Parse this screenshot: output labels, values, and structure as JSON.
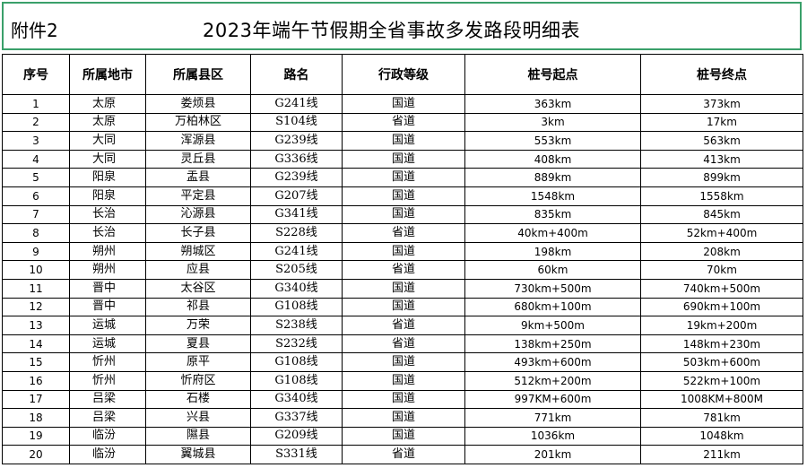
{
  "header": {
    "attachment": "附件2",
    "title": "2023年端午节假期全省事故多发路段明细表"
  },
  "table": {
    "columns": [
      "序号",
      "所属地市",
      "所属县区",
      "路名",
      "行政等级",
      "桩号起点",
      "桩号终点"
    ],
    "rows": [
      [
        "1",
        "太原",
        "娄烦县",
        "G241线",
        "国道",
        "363km",
        "373km"
      ],
      [
        "2",
        "太原",
        "万柏林区",
        "S104线",
        "省道",
        "3km",
        "17km"
      ],
      [
        "3",
        "大同",
        "浑源县",
        "G239线",
        "国道",
        "553km",
        "563km"
      ],
      [
        "4",
        "大同",
        "灵丘县",
        "G336线",
        "国道",
        "408km",
        "413km"
      ],
      [
        "5",
        "阳泉",
        "盂县",
        "G239线",
        "国道",
        "889km",
        "899km"
      ],
      [
        "6",
        "阳泉",
        "平定县",
        "G207线",
        "国道",
        "1548km",
        "1558km"
      ],
      [
        "7",
        "长治",
        "沁源县",
        "G341线",
        "国道",
        "835km",
        "845km"
      ],
      [
        "8",
        "长治",
        "长子县",
        "S228线",
        "省道",
        "40km+400m",
        "52km+400m"
      ],
      [
        "9",
        "朔州",
        "朔城区",
        "G241线",
        "国道",
        "198km",
        "208km"
      ],
      [
        "10",
        "朔州",
        "应县",
        "S205线",
        "省道",
        "60km",
        "70km"
      ],
      [
        "11",
        "晋中",
        "太谷区",
        "G340线",
        "国道",
        "730km+500m",
        "740km+500m"
      ],
      [
        "12",
        "晋中",
        "祁县",
        "G108线",
        "国道",
        "680km+100m",
        "690km+100m"
      ],
      [
        "13",
        "运城",
        "万荣",
        "S238线",
        "省道",
        "9km+500m",
        "19km+200m"
      ],
      [
        "14",
        "运城",
        "夏县",
        "S232线",
        "省道",
        "138km+250m",
        "148km+230m"
      ],
      [
        "15",
        "忻州",
        "原平",
        "G108线",
        "国道",
        "493km+600m",
        "503km+600m"
      ],
      [
        "16",
        "忻州",
        "忻府区",
        "G108线",
        "国道",
        "512km+200m",
        "522km+100m"
      ],
      [
        "17",
        "吕梁",
        "石楼",
        "G340线",
        "国道",
        "997KM+600m",
        "1008KM+800M"
      ],
      [
        "18",
        "吕梁",
        "兴县",
        "G337线",
        "国道",
        "771km",
        "781km"
      ],
      [
        "19",
        "临汾",
        "隰县",
        "G209线",
        "国道",
        "1036km",
        "1048km"
      ],
      [
        "20",
        "临汾",
        "翼城县",
        "S331线",
        "省道",
        "201km",
        "211km"
      ]
    ]
  }
}
